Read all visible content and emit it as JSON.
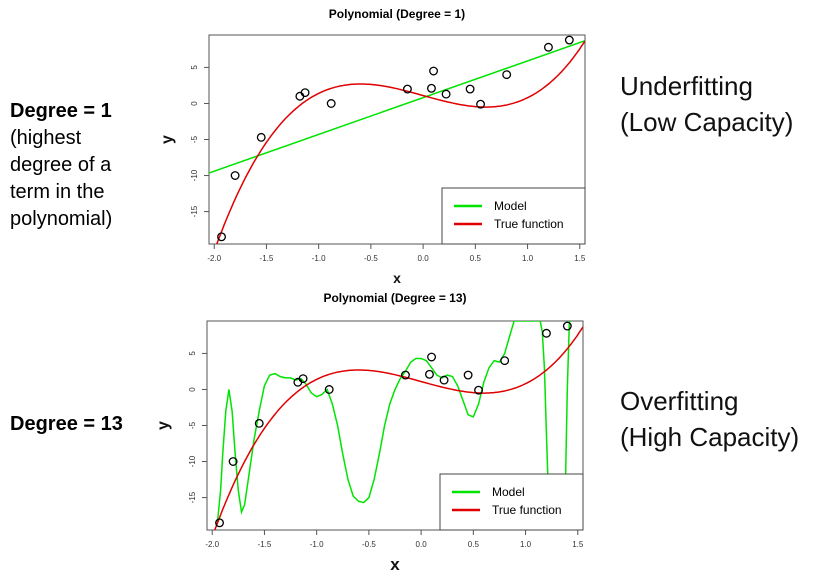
{
  "left_top": {
    "title": "Degree = 1",
    "note_lines": [
      "(highest",
      "degree of a",
      "term in the",
      "polynomial)"
    ]
  },
  "left_bottom": {
    "title": "Degree = 13"
  },
  "right_top": {
    "line1": "Underfitting",
    "line2": "(Low Capacity)"
  },
  "right_bottom": {
    "line1": "Overfitting",
    "line2": "(High Capacity)"
  },
  "colors": {
    "model": "#00e400",
    "true_function": "#e00000"
  },
  "chart_data": [
    {
      "type": "line",
      "title": "Polynomial (Degree = 1)",
      "xlabel": "x",
      "ylabel": "y",
      "xlim": [
        -2.05,
        1.55
      ],
      "ylim": [
        -19.5,
        9.5
      ],
      "xticks": [
        -2.0,
        -1.5,
        -1.0,
        -0.5,
        0.0,
        0.5,
        1.0,
        1.5
      ],
      "yticks": [
        -15,
        -10,
        -5,
        0,
        5
      ],
      "legend": {
        "position": "bottom-right",
        "entries": [
          "Model",
          "True function"
        ]
      },
      "points": {
        "x": [
          -1.93,
          -1.8,
          -1.55,
          -1.18,
          -1.13,
          -0.88,
          -0.15,
          0.08,
          0.1,
          0.22,
          0.45,
          0.55,
          0.8,
          1.2,
          1.4
        ],
        "y": [
          -18.5,
          -10.0,
          -4.7,
          1.0,
          1.5,
          0.0,
          2.0,
          2.1,
          4.5,
          1.3,
          2.0,
          -0.1,
          4.0,
          7.8,
          8.8
        ]
      },
      "series": [
        {
          "name": "Model",
          "kind": "line",
          "intercept": 0.8,
          "slope": 5.1
        },
        {
          "name": "True function",
          "kind": "curve",
          "coefficients": [
            1.1,
            -4.0,
            0.0,
            3.7
          ]
        }
      ]
    },
    {
      "type": "line",
      "title": "Polynomial (Degree = 13)",
      "xlabel": "x",
      "ylabel": "y",
      "xlim": [
        -2.05,
        1.55
      ],
      "ylim": [
        -19.5,
        9.5
      ],
      "xticks": [
        -2.0,
        -1.5,
        -1.0,
        -0.5,
        0.0,
        0.5,
        1.0,
        1.5
      ],
      "yticks": [
        -15,
        -10,
        -5,
        0,
        5
      ],
      "legend": {
        "position": "bottom-right",
        "entries": [
          "Model",
          "True function"
        ]
      },
      "points": {
        "x": [
          -1.93,
          -1.8,
          -1.55,
          -1.18,
          -1.13,
          -0.88,
          -0.15,
          0.08,
          0.1,
          0.22,
          0.45,
          0.55,
          0.8,
          1.2,
          1.4
        ],
        "y": [
          -18.5,
          -10.0,
          -4.7,
          1.0,
          1.5,
          0.0,
          2.0,
          2.1,
          4.5,
          1.3,
          2.0,
          -0.1,
          4.0,
          7.8,
          8.8
        ]
      },
      "series": [
        {
          "name": "Model",
          "kind": "polyline",
          "x": [
            -1.95,
            -1.92,
            -1.9,
            -1.87,
            -1.84,
            -1.81,
            -1.78,
            -1.75,
            -1.72,
            -1.69,
            -1.65,
            -1.6,
            -1.55,
            -1.5,
            -1.45,
            -1.4,
            -1.35,
            -1.3,
            -1.25,
            -1.2,
            -1.15,
            -1.1,
            -1.05,
            -1.0,
            -0.95,
            -0.9,
            -0.85,
            -0.8,
            -0.75,
            -0.7,
            -0.65,
            -0.6,
            -0.55,
            -0.5,
            -0.45,
            -0.4,
            -0.35,
            -0.3,
            -0.25,
            -0.2,
            -0.15,
            -0.1,
            -0.05,
            0.0,
            0.05,
            0.1,
            0.15,
            0.2,
            0.25,
            0.3,
            0.35,
            0.4,
            0.45,
            0.5,
            0.55,
            0.6,
            0.65,
            0.7,
            0.75,
            0.8,
            0.84,
            0.87,
            0.89,
            1.14,
            1.16,
            1.18,
            1.2,
            1.22,
            1.24,
            1.28,
            1.32,
            1.36,
            1.38,
            1.4,
            1.42,
            1.44
          ],
          "y": [
            -18.5,
            -14.0,
            -9.0,
            -3.0,
            0.0,
            -3.0,
            -9.0,
            -14.0,
            -17.0,
            -16.0,
            -12.0,
            -7.0,
            -3.0,
            0.5,
            2.0,
            2.2,
            1.8,
            1.6,
            1.6,
            1.3,
            1.5,
            0.7,
            -0.5,
            -1.0,
            -0.7,
            0.0,
            -2.0,
            -5.0,
            -9.0,
            -12.5,
            -14.8,
            -15.5,
            -15.7,
            -15.0,
            -12.5,
            -9.0,
            -5.0,
            -2.0,
            0.0,
            1.5,
            2.5,
            3.8,
            4.3,
            4.3,
            4.0,
            3.0,
            2.0,
            1.6,
            2.0,
            1.8,
            0.5,
            -1.5,
            -3.5,
            -3.8,
            -2.0,
            1.0,
            3.0,
            4.0,
            3.8,
            5.0,
            7.0,
            8.5,
            9.5,
            9.5,
            8.0,
            3.0,
            -6.0,
            -15.0,
            -19.5,
            -19.5,
            -19.5,
            -19.5,
            -15.0,
            0.0,
            9.5,
            9.5
          ]
        },
        {
          "name": "True function",
          "kind": "curve",
          "coefficients": [
            1.1,
            -4.0,
            0.0,
            3.7
          ]
        }
      ]
    }
  ]
}
